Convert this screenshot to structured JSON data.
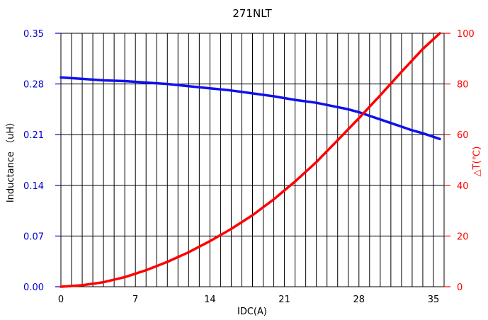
{
  "chart_data": {
    "type": "line",
    "title": "271NLT",
    "xlabel": "IDC(A)",
    "ylabel_left": "Inductance （uH）",
    "ylabel_right": "△T(℃)",
    "xlim": [
      0,
      36
    ],
    "ylim_left": [
      0,
      0.35
    ],
    "ylim_right": [
      0,
      100
    ],
    "x_ticks": [
      "0",
      "7",
      "14",
      "21",
      "28",
      "35"
    ],
    "x_tick_values": [
      0,
      7,
      14,
      21,
      28,
      35
    ],
    "y_left_ticks": [
      "0.00",
      "0.07",
      "0.14",
      "0.21",
      "0.28",
      "0.35"
    ],
    "y_left_tick_values": [
      0,
      0.07,
      0.14,
      0.21,
      0.28,
      0.35
    ],
    "y_right_ticks": [
      "0",
      "20",
      "40",
      "60",
      "80",
      "100"
    ],
    "y_right_tick_values": [
      0,
      20,
      40,
      60,
      80,
      100
    ],
    "vertical_grid_step": 1,
    "grid": true,
    "colors": {
      "inductance": "#1010ee",
      "temperature": "#ff0000",
      "left_axis_text": "#0000cc",
      "right_axis_text": "#ff0000",
      "grid": "#000000"
    },
    "series": [
      {
        "axis": "left",
        "x": [
          0,
          2,
          4,
          6,
          8,
          10,
          12,
          14,
          16,
          18,
          20,
          22,
          24,
          26,
          27,
          28,
          29,
          30,
          31,
          32,
          33,
          34,
          35,
          35.6
        ],
        "values": [
          0.289,
          0.287,
          0.285,
          0.284,
          0.282,
          0.28,
          0.277,
          0.274,
          0.271,
          0.267,
          0.263,
          0.258,
          0.254,
          0.248,
          0.245,
          0.241,
          0.236,
          0.231,
          0.226,
          0.221,
          0.216,
          0.212,
          0.207,
          0.204
        ]
      },
      {
        "axis": "right",
        "x": [
          0,
          2,
          4,
          6,
          8,
          10,
          12,
          14,
          16,
          18,
          20,
          22,
          24,
          26,
          28,
          30,
          32,
          34,
          35.6
        ],
        "values": [
          0,
          0.6,
          1.8,
          3.8,
          6.5,
          9.8,
          13.6,
          18,
          22.8,
          28.2,
          34.5,
          41.5,
          49.2,
          57.8,
          66.5,
          75.5,
          84.8,
          93.8,
          100
        ]
      }
    ]
  }
}
